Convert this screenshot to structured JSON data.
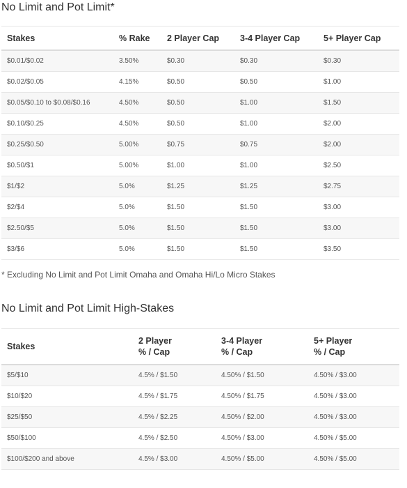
{
  "section1": {
    "title": "No Limit and Pot Limit*",
    "headers": [
      "Stakes",
      "% Rake",
      "2 Player Cap",
      "3-4 Player Cap",
      "5+ Player Cap"
    ],
    "rows": [
      [
        "$0.01/$0.02",
        "3.50%",
        "$0.30",
        "$0.30",
        "$0.30"
      ],
      [
        "$0.02/$0.05",
        "4.15%",
        "$0.50",
        "$0.50",
        "$1.00"
      ],
      [
        "$0.05/$0.10 to $0.08/$0.16",
        "4.50%",
        "$0.50",
        "$1.00",
        "$1.50"
      ],
      [
        "$0.10/$0.25",
        "4.50%",
        "$0.50",
        "$1.00",
        "$2.00"
      ],
      [
        "$0.25/$0.50",
        "5.00%",
        "$0.75",
        "$0.75",
        "$2.00"
      ],
      [
        "$0.50/$1",
        "5.00%",
        "$1.00",
        "$1.00",
        "$2.50"
      ],
      [
        "$1/$2",
        "5.0%",
        "$1.25",
        "$1.25",
        "$2.75"
      ],
      [
        "$2/$4",
        "5.0%",
        "$1.50",
        "$1.50",
        "$3.00"
      ],
      [
        "$2.50/$5",
        "5.0%",
        "$1.50",
        "$1.50",
        "$3.00"
      ],
      [
        "$3/$6",
        "5.0%",
        "$1.50",
        "$1.50",
        "$3.50"
      ]
    ],
    "footnote": "* Excluding No Limit and Pot Limit Omaha and Omaha Hi/Lo Micro Stakes"
  },
  "section2": {
    "title": "No Limit and Pot Limit High-Stakes",
    "headers": [
      {
        "line1": "Stakes",
        "line2": ""
      },
      {
        "line1": "2 Player",
        "line2": "% / Cap"
      },
      {
        "line1": "3-4 Player",
        "line2": "% / Cap"
      },
      {
        "line1": "5+ Player",
        "line2": "% / Cap"
      }
    ],
    "rows": [
      [
        "$5/$10",
        "4.5% / $1.50",
        "4.50% / $1.50",
        "4.50% / $3.00"
      ],
      [
        "$10/$20",
        "4.5% / $1.75",
        "4.50% / $1.75",
        "4.50% / $3.00"
      ],
      [
        "$25/$50",
        "4.5% / $2.25",
        "4.50% / $2.00",
        "4.50% / $3.00"
      ],
      [
        "$50/$100",
        "4.5% / $2.50",
        "4.50% / $3.00",
        "4.50% / $5.00"
      ],
      [
        "$100/$200 and above",
        "4.5% / $3.00",
        "4.50% / $5.00",
        "4.50% / $5.00"
      ]
    ]
  }
}
